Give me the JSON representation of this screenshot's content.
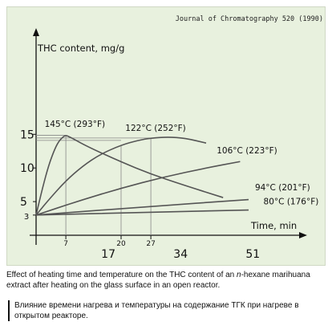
{
  "journal": "Journal of Chromatography 520 (1990)",
  "caption_en_parts": [
    "Effect of heating time and temperature on the THC content of an ",
    "n",
    "-hexane marihuana extract after heating on the glass surface in an open reactor."
  ],
  "caption_ru": "Влияние времени нагрева и температуры на содержание ТГК при нагреве в открытом реакторе.",
  "chart_data": {
    "type": "line",
    "ylabel": "THC content, mg/g",
    "xlabel": "Time, min",
    "xlim": [
      0,
      65
    ],
    "ylim": [
      0,
      18
    ],
    "y_ticks": [
      {
        "value": 3,
        "label": "3"
      },
      {
        "value": 5,
        "label": "5"
      },
      {
        "value": 10,
        "label": "10"
      },
      {
        "value": 15,
        "label": "15"
      }
    ],
    "x_ticks_upper": [
      {
        "value": 7,
        "label": "7"
      },
      {
        "value": 20,
        "label": "20"
      },
      {
        "value": 27,
        "label": "27"
      }
    ],
    "x_ticks_lower": [
      {
        "value": 17,
        "label": "17"
      },
      {
        "value": 34,
        "label": "34"
      },
      {
        "value": 51,
        "label": "51"
      }
    ],
    "series": [
      {
        "name": "145°C (293°F)",
        "points": [
          [
            0,
            3
          ],
          [
            1.5,
            7
          ],
          [
            3,
            10.5
          ],
          [
            4.5,
            13
          ],
          [
            5.5,
            14.1
          ],
          [
            6.5,
            14.7
          ],
          [
            7,
            14.85
          ],
          [
            8,
            14.6
          ],
          [
            12,
            13.2
          ],
          [
            20,
            10.9
          ],
          [
            27,
            9.1
          ],
          [
            34,
            7.6
          ],
          [
            44,
            5.6
          ]
        ]
      },
      {
        "name": "122°C (252°F)",
        "points": [
          [
            0,
            3
          ],
          [
            3,
            5.3
          ],
          [
            7,
            8.1
          ],
          [
            11,
            10.3
          ],
          [
            15,
            12
          ],
          [
            20,
            13.4
          ],
          [
            24,
            14.1
          ],
          [
            27,
            14.45
          ],
          [
            31,
            14.6
          ],
          [
            35,
            14.45
          ],
          [
            40,
            13.7
          ]
        ]
      },
      {
        "name": "106°C (223°F)",
        "points": [
          [
            0,
            3
          ],
          [
            10,
            5.1
          ],
          [
            20,
            7
          ],
          [
            30,
            8.65
          ],
          [
            40,
            10
          ],
          [
            48,
            10.95
          ]
        ]
      },
      {
        "name": "94°C (201°F)",
        "points": [
          [
            0,
            3
          ],
          [
            25,
            4.2
          ],
          [
            50,
            5.3
          ]
        ]
      },
      {
        "name": "80°C (176°F)",
        "points": [
          [
            0,
            3
          ],
          [
            25,
            3.4
          ],
          [
            50,
            3.75
          ]
        ]
      }
    ],
    "guide_lines": "dashed-ish thin lines from peaks down to x axis",
    "grid": false,
    "colors": {
      "background": "#e8f1de",
      "line": "#555555",
      "axis": "#111111"
    }
  }
}
